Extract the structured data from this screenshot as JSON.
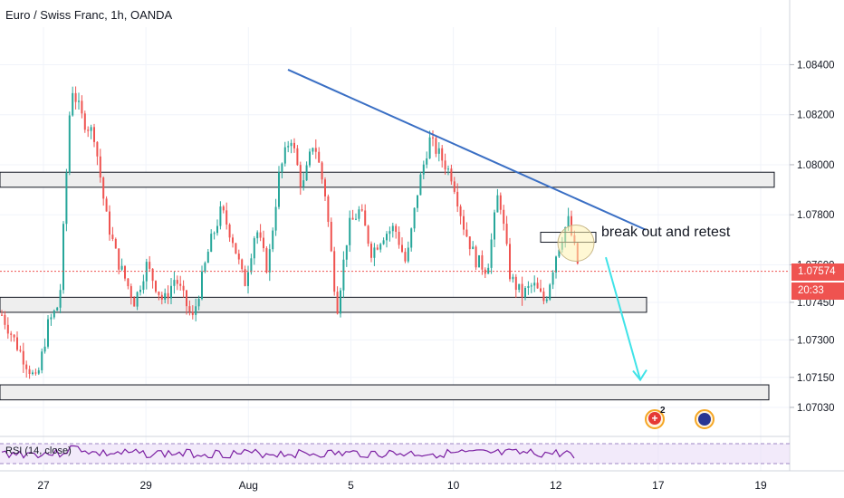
{
  "header": {
    "title": "Euro / Swiss Franc, 1h, OANDA"
  },
  "indicator": {
    "label": "RSI (14, close)"
  },
  "annotation": {
    "text": "break out and retest"
  },
  "last_price": {
    "value": "1.07574",
    "countdown": "20:33",
    "color": "#ef5350"
  },
  "events": {
    "count_label": "2"
  },
  "chart_data": {
    "type": "candlestick",
    "symbol": "EURCHF",
    "y_ticks": [
      "1.08400",
      "1.08200",
      "1.08000",
      "1.07800",
      "1.07600",
      "1.07450",
      "1.07300",
      "1.07150",
      "1.07030"
    ],
    "x_ticks": [
      "27",
      "29",
      "Aug",
      "5",
      "10",
      "12",
      "17",
      "19"
    ],
    "ylim": [
      1.0695,
      1.0855
    ],
    "colors": {
      "up": "#26a69a",
      "down": "#ef5350",
      "trendline": "#3a6fc4",
      "arrow": "#3fe3e8"
    },
    "price_path": [
      [
        0,
        1.074
      ],
      [
        0.03,
        1.0726
      ],
      [
        0.06,
        1.0713
      ],
      [
        0.08,
        1.0736
      ],
      [
        0.1,
        1.0745
      ],
      [
        0.12,
        1.0832
      ],
      [
        0.14,
        1.0818
      ],
      [
        0.16,
        1.0812
      ],
      [
        0.18,
        1.078
      ],
      [
        0.2,
        1.0762
      ],
      [
        0.23,
        1.0745
      ],
      [
        0.25,
        1.076
      ],
      [
        0.28,
        1.0745
      ],
      [
        0.3,
        1.0755
      ],
      [
        0.33,
        1.0738
      ],
      [
        0.36,
        1.0768
      ],
      [
        0.38,
        1.0782
      ],
      [
        0.4,
        1.077
      ],
      [
        0.42,
        1.0752
      ],
      [
        0.44,
        1.0775
      ],
      [
        0.46,
        1.0758
      ],
      [
        0.48,
        1.0796
      ],
      [
        0.5,
        1.0812
      ],
      [
        0.52,
        1.079
      ],
      [
        0.54,
        1.081
      ],
      [
        0.56,
        1.0788
      ],
      [
        0.58,
        1.0742
      ],
      [
        0.6,
        1.0775
      ],
      [
        0.62,
        1.0782
      ],
      [
        0.64,
        1.0765
      ],
      [
        0.66,
        1.0772
      ],
      [
        0.68,
        1.0775
      ],
      [
        0.7,
        1.076
      ],
      [
        0.72,
        1.079
      ],
      [
        0.74,
        1.081
      ],
      [
        0.76,
        1.0803
      ],
      [
        0.78,
        1.0795
      ],
      [
        0.8,
        1.0775
      ],
      [
        0.82,
        1.0762
      ],
      [
        0.84,
        1.0758
      ],
      [
        0.86,
        1.079
      ],
      [
        0.88,
        1.0755
      ],
      [
        0.9,
        1.0748
      ],
      [
        0.92,
        1.0752
      ],
      [
        0.94,
        1.0745
      ],
      [
        0.96,
        1.0765
      ],
      [
        0.98,
        1.0778
      ],
      [
        1.0,
        1.0757
      ]
    ],
    "zones": [
      {
        "low": 1.0791,
        "high": 1.0797
      },
      {
        "low": 1.0741,
        "high": 1.0747
      },
      {
        "low": 1.0706,
        "high": 1.0712
      }
    ],
    "trendline": {
      "from": 1.0838,
      "to": 1.0774
    },
    "last_price": 1.07574
  }
}
